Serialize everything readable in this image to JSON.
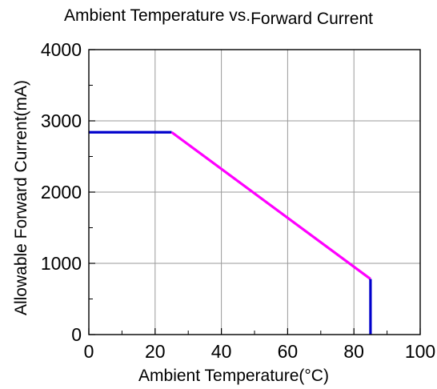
{
  "chart_data": {
    "type": "line",
    "title_part1": "Ambient Temperature vs.",
    "title_part2": "Forward Current",
    "xlabel": "Ambient Temperature(°C)",
    "ylabel": "Allowable Forward Current(mA)",
    "xlim": [
      0,
      100
    ],
    "ylim": [
      0,
      4000
    ],
    "x_ticks": [
      0,
      20,
      40,
      60,
      80,
      100
    ],
    "x_tick_labels": [
      "0",
      "20",
      "40",
      "60",
      "80",
      "100"
    ],
    "y_ticks": [
      0,
      1000,
      2000,
      3000,
      4000
    ],
    "y_tick_labels": [
      "0",
      "1000",
      "2000",
      "3000",
      "4000"
    ],
    "x_minor_ticks": [
      10,
      30,
      50,
      70,
      90
    ],
    "y_minor_ticks": [
      500,
      1500,
      2500,
      3500
    ],
    "grid": true,
    "series": [
      {
        "color": "#0000cc",
        "points": [
          [
            0,
            2840
          ],
          [
            25,
            2840
          ]
        ]
      },
      {
        "color": "#ff00ff",
        "points": [
          [
            25,
            2840
          ],
          [
            85,
            780
          ]
        ]
      },
      {
        "color": "#0000cc",
        "points": [
          [
            85,
            780
          ],
          [
            85,
            0
          ]
        ]
      }
    ]
  }
}
